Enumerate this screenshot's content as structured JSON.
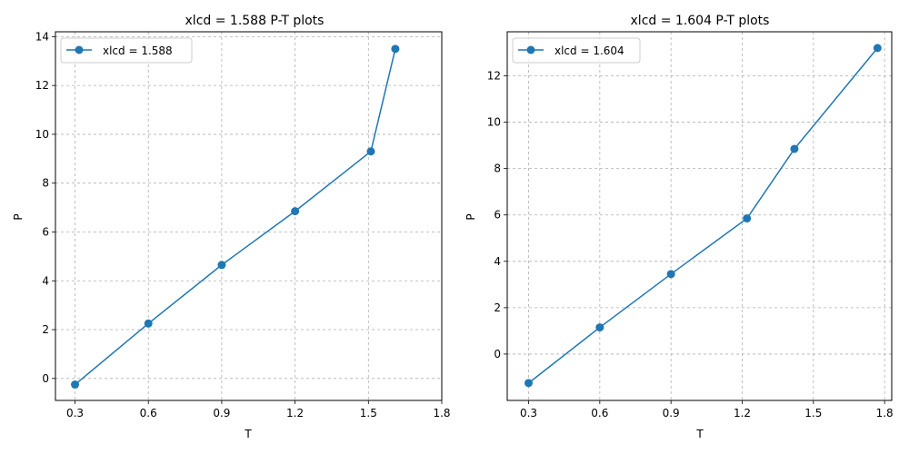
{
  "chart_data": [
    {
      "type": "line",
      "title": "xlcd = 1.588 P-T plots",
      "xlabel": "T",
      "ylabel": "P",
      "xlim": [
        0.22,
        1.8
      ],
      "ylim": [
        -0.9,
        14.2
      ],
      "xticks": [
        0.3,
        0.6,
        0.9,
        1.2,
        1.5,
        1.8
      ],
      "xtick_labels": [
        "0.3",
        "0.6",
        "0.9",
        "1.2",
        "1.5",
        "1.8"
      ],
      "yticks": [
        0,
        2,
        4,
        6,
        8,
        10,
        12,
        14
      ],
      "ytick_labels": [
        "0",
        "2",
        "4",
        "6",
        "8",
        "10",
        "12",
        "14"
      ],
      "grid": true,
      "legend_position": "upper-left",
      "series": [
        {
          "name": "xlcd = 1.588",
          "color": "#1f77b4",
          "marker": "circle",
          "x": [
            0.3,
            0.6,
            0.9,
            1.2,
            1.51,
            1.61
          ],
          "y": [
            -0.25,
            2.25,
            4.65,
            6.85,
            9.3,
            13.5
          ]
        }
      ]
    },
    {
      "type": "line",
      "title": "xlcd = 1.604 P-T plots",
      "xlabel": "T",
      "ylabel": "P",
      "xlim": [
        0.21,
        1.83
      ],
      "ylim": [
        -2.0,
        13.9
      ],
      "xticks": [
        0.3,
        0.6,
        0.9,
        1.2,
        1.5,
        1.8
      ],
      "xtick_labels": [
        "0.3",
        "0.6",
        "0.9",
        "1.2",
        "1.5",
        "1.8"
      ],
      "yticks": [
        0,
        2,
        4,
        6,
        8,
        10,
        12
      ],
      "ytick_labels": [
        "0",
        "2",
        "4",
        "6",
        "8",
        "10",
        "12"
      ],
      "grid": true,
      "legend_position": "upper-left",
      "series": [
        {
          "name": "xlcd = 1.604",
          "color": "#1f77b4",
          "marker": "circle",
          "x": [
            0.3,
            0.6,
            0.9,
            1.22,
            1.42,
            1.77
          ],
          "y": [
            -1.25,
            1.15,
            3.45,
            5.85,
            8.85,
            13.2
          ]
        }
      ]
    }
  ]
}
